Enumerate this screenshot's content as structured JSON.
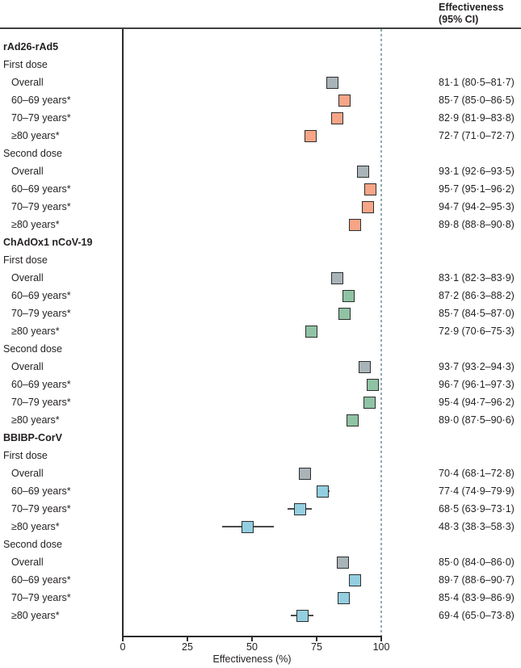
{
  "header": {
    "line1": "Effectiveness",
    "line2": "(95% CI)"
  },
  "colors": {
    "gray": "#a9b4b8",
    "salmon": "#f6a586",
    "green": "#8fc3a3",
    "blue": "#93cfe1",
    "whisker": "#4a4a4a",
    "marker_border": "#2e2e2e",
    "reference_line": "#8ea9b2",
    "axis": "#2b2b2b",
    "text": "#231f20"
  },
  "chart_data": {
    "type": "forest",
    "title": "",
    "xlabel": "Effectiveness (%)",
    "xlim": [
      0,
      100
    ],
    "x_ticks": [
      0,
      25,
      50,
      75,
      100
    ],
    "reference_line_x": 100,
    "value_column_header": "Effectiveness (95% CI)",
    "grid": false,
    "rows": [
      {
        "type": "group",
        "label": "rAd26-rAd5"
      },
      {
        "type": "dose",
        "label": "First dose"
      },
      {
        "type": "item",
        "label": "Overall",
        "estimate": 81.1,
        "ci_low": 80.5,
        "ci_high": 81.7,
        "display": "81·1 (80·5–81·7)",
        "color": "gray"
      },
      {
        "type": "item",
        "label": "60–69 years*",
        "estimate": 85.7,
        "ci_low": 85.0,
        "ci_high": 86.5,
        "display": "85·7 (85·0–86·5)",
        "color": "salmon"
      },
      {
        "type": "item",
        "label": "70–79 years*",
        "estimate": 82.9,
        "ci_low": 81.9,
        "ci_high": 83.8,
        "display": "82·9 (81·9–83·8)",
        "color": "salmon"
      },
      {
        "type": "item",
        "label": "≥80 years*",
        "estimate": 72.7,
        "ci_low": 71.0,
        "ci_high": 72.7,
        "display": "72·7 (71·0–72·7)",
        "color": "salmon"
      },
      {
        "type": "dose",
        "label": "Second dose"
      },
      {
        "type": "item",
        "label": "Overall",
        "estimate": 93.1,
        "ci_low": 92.6,
        "ci_high": 93.5,
        "display": "93·1 (92·6–93·5)",
        "color": "gray"
      },
      {
        "type": "item",
        "label": "60–69 years*",
        "estimate": 95.7,
        "ci_low": 95.1,
        "ci_high": 96.2,
        "display": "95·7 (95·1–96·2)",
        "color": "salmon"
      },
      {
        "type": "item",
        "label": "70–79 years*",
        "estimate": 94.7,
        "ci_low": 94.2,
        "ci_high": 95.3,
        "display": "94·7 (94·2–95·3)",
        "color": "salmon"
      },
      {
        "type": "item",
        "label": "≥80 years*",
        "estimate": 89.8,
        "ci_low": 88.8,
        "ci_high": 90.8,
        "display": "89·8 (88·8–90·8)",
        "color": "salmon"
      },
      {
        "type": "group",
        "label": "ChAdOx1 nCoV-19"
      },
      {
        "type": "dose",
        "label": "First dose"
      },
      {
        "type": "item",
        "label": "Overall",
        "estimate": 83.1,
        "ci_low": 82.3,
        "ci_high": 83.9,
        "display": "83·1 (82·3–83·9)",
        "color": "gray"
      },
      {
        "type": "item",
        "label": "60–69 years*",
        "estimate": 87.2,
        "ci_low": 86.3,
        "ci_high": 88.2,
        "display": "87·2 (86·3–88·2)",
        "color": "green"
      },
      {
        "type": "item",
        "label": "70–79 years*",
        "estimate": 85.7,
        "ci_low": 84.5,
        "ci_high": 87.0,
        "display": "85·7 (84·5–87·0)",
        "color": "green"
      },
      {
        "type": "item",
        "label": "≥80 years*",
        "estimate": 72.9,
        "ci_low": 70.6,
        "ci_high": 75.3,
        "display": "72·9 (70·6–75·3)",
        "color": "green"
      },
      {
        "type": "dose",
        "label": "Second dose"
      },
      {
        "type": "item",
        "label": "Overall",
        "estimate": 93.7,
        "ci_low": 93.2,
        "ci_high": 94.3,
        "display": "93·7 (93·2–94·3)",
        "color": "gray"
      },
      {
        "type": "item",
        "label": "60–69 years*",
        "estimate": 96.7,
        "ci_low": 96.1,
        "ci_high": 97.3,
        "display": "96·7 (96·1–97·3)",
        "color": "green"
      },
      {
        "type": "item",
        "label": "70–79 years*",
        "estimate": 95.4,
        "ci_low": 94.7,
        "ci_high": 96.2,
        "display": "95·4 (94·7–96·2)",
        "color": "green"
      },
      {
        "type": "item",
        "label": "≥80 years*",
        "estimate": 89.0,
        "ci_low": 87.5,
        "ci_high": 90.6,
        "display": "89·0 (87·5–90·6)",
        "color": "green"
      },
      {
        "type": "group",
        "label": "BBIBP-CorV"
      },
      {
        "type": "dose",
        "label": "First dose"
      },
      {
        "type": "item",
        "label": "Overall",
        "estimate": 70.4,
        "ci_low": 68.1,
        "ci_high": 72.8,
        "display": "70·4 (68·1–72·8)",
        "color": "gray"
      },
      {
        "type": "item",
        "label": "60–69 years*",
        "estimate": 77.4,
        "ci_low": 74.9,
        "ci_high": 79.9,
        "display": "77·4 (74·9–79·9)",
        "color": "blue"
      },
      {
        "type": "item",
        "label": "70–79 years*",
        "estimate": 68.5,
        "ci_low": 63.9,
        "ci_high": 73.1,
        "display": "68·5 (63·9–73·1)",
        "color": "blue"
      },
      {
        "type": "item",
        "label": "≥80 years*",
        "estimate": 48.3,
        "ci_low": 38.3,
        "ci_high": 58.3,
        "display": "48·3 (38·3–58·3)",
        "color": "blue"
      },
      {
        "type": "dose",
        "label": "Second dose"
      },
      {
        "type": "item",
        "label": "Overall",
        "estimate": 85.0,
        "ci_low": 84.0,
        "ci_high": 86.0,
        "display": "85·0 (84·0–86·0)",
        "color": "gray"
      },
      {
        "type": "item",
        "label": "60–69 years*",
        "estimate": 89.7,
        "ci_low": 88.6,
        "ci_high": 90.7,
        "display": "89·7 (88·6–90·7)",
        "color": "blue"
      },
      {
        "type": "item",
        "label": "70–79 years*",
        "estimate": 85.4,
        "ci_low": 83.9,
        "ci_high": 86.9,
        "display": "85·4 (83·9–86·9)",
        "color": "blue"
      },
      {
        "type": "item",
        "label": "≥80 years*",
        "estimate": 69.4,
        "ci_low": 65.0,
        "ci_high": 73.8,
        "display": "69·4 (65·0–73·8)",
        "color": "blue"
      }
    ]
  }
}
